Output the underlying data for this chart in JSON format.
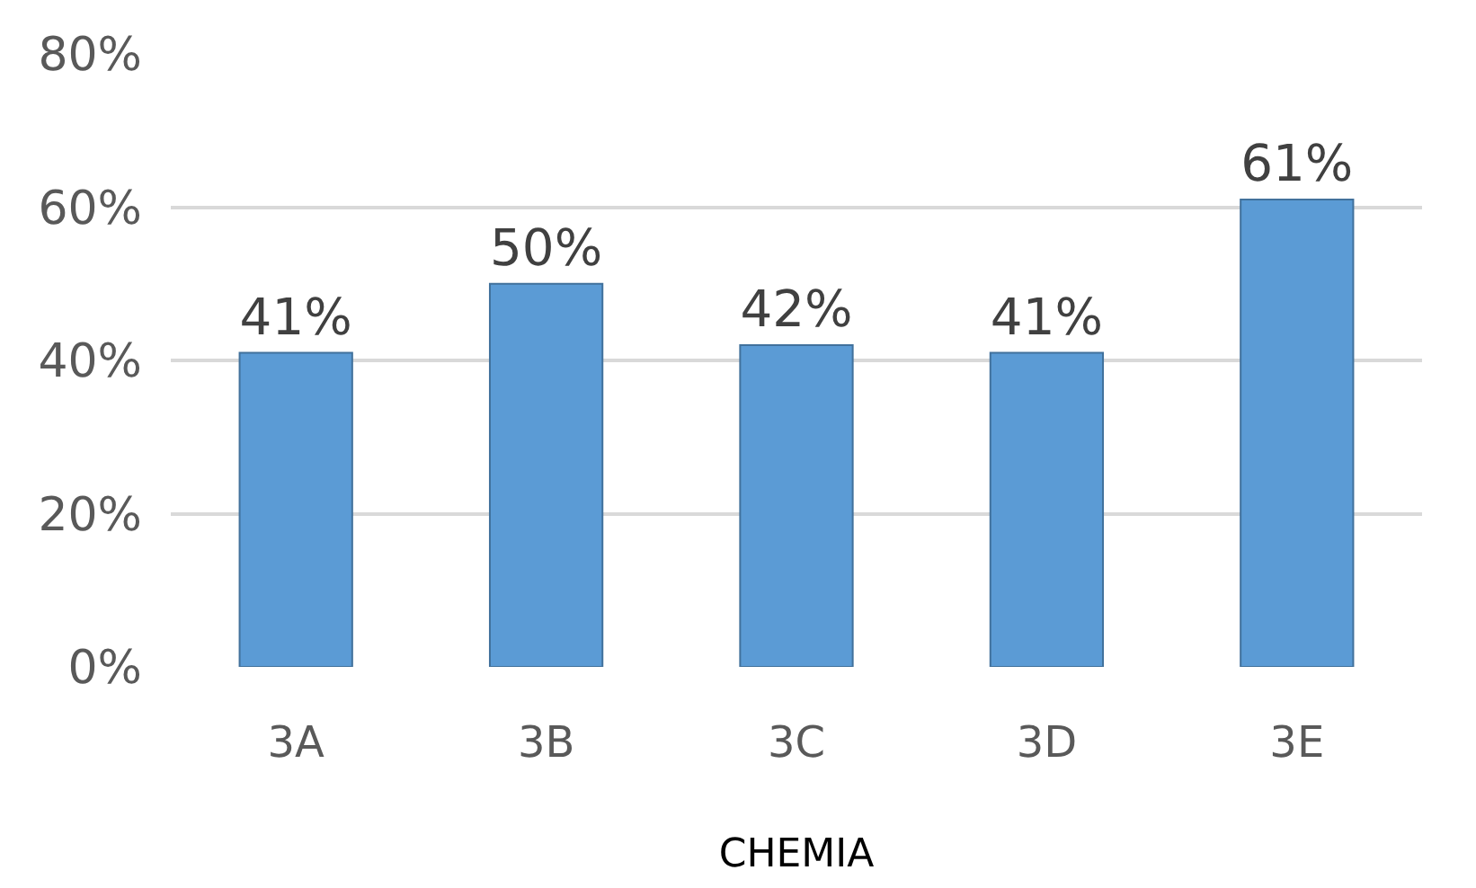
{
  "chart_data": {
    "type": "bar",
    "xlabel": "CHEMIA",
    "categories": [
      "3A",
      "3B",
      "3C",
      "3D",
      "3E"
    ],
    "values": [
      41,
      50,
      42,
      41,
      61
    ],
    "color": "#5b9bd5",
    "ylim": [
      0,
      80
    ],
    "yticks": [
      {
        "value": 0,
        "label": "0%"
      },
      {
        "value": 20,
        "label": "20%"
      },
      {
        "value": 40,
        "label": "40%"
      },
      {
        "value": 60,
        "label": "60%"
      },
      {
        "value": 80,
        "label": "80%"
      }
    ],
    "grid": "y",
    "data_labels": true,
    "value_labels": [
      "41%",
      "50%",
      "42%",
      "41%",
      "61%"
    ]
  }
}
